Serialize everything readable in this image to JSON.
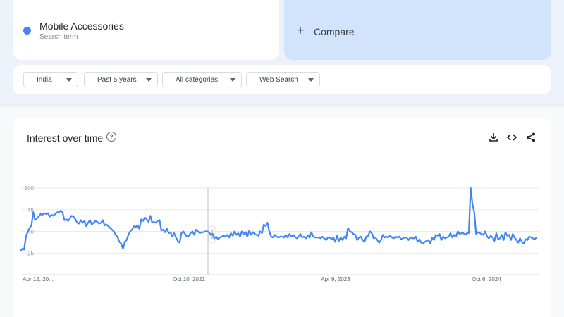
{
  "search_term": {
    "name": "Mobile Accessories",
    "subtitle": "Search term",
    "color": "#4285f4"
  },
  "compare": {
    "label": "Compare"
  },
  "filters": [
    {
      "label": "India"
    },
    {
      "label": "Past 5 years"
    },
    {
      "label": "All categories"
    },
    {
      "label": "Web Search"
    }
  ],
  "chart": {
    "title": "Interest over time",
    "tool_icons": [
      "download-icon",
      "embed-code-icon",
      "share-icon"
    ]
  },
  "chart_data": {
    "type": "line",
    "title": "Interest over time",
    "y_ticks": [
      "25",
      "50",
      "75",
      "100"
    ],
    "ylim": [
      0,
      100
    ],
    "x_tick_labels": [
      "Apr 12, 20...",
      "Oct 10, 2021",
      "Apr 9, 2023",
      "Oct 6, 2024"
    ],
    "grid": true,
    "series": [
      {
        "name": "Mobile Accessories",
        "color": "#4285f4",
        "values": [
          27,
          30,
          29,
          44,
          50,
          54,
          57,
          72,
          63,
          65,
          67,
          70,
          69,
          71,
          70,
          71,
          67,
          69,
          68,
          70,
          72,
          72,
          74,
          72,
          63,
          64,
          62,
          65,
          68,
          67,
          64,
          60,
          59,
          63,
          60,
          62,
          56,
          60,
          63,
          58,
          60,
          62,
          61,
          59,
          60,
          63,
          57,
          58,
          56,
          54,
          52,
          50,
          46,
          44,
          38,
          36,
          30,
          38,
          40,
          46,
          50,
          52,
          56,
          55,
          57,
          53,
          64,
          62,
          66,
          64,
          61,
          68,
          60,
          61,
          60,
          62,
          63,
          51,
          52,
          49,
          53,
          48,
          49,
          44,
          48,
          43,
          39,
          37,
          48,
          50,
          47,
          44,
          45,
          48,
          50,
          46,
          52,
          50,
          48,
          49,
          49,
          50,
          50,
          49,
          46,
          47,
          42,
          44,
          41,
          43,
          44,
          45,
          44,
          46,
          43,
          48,
          45,
          50,
          46,
          48,
          44,
          50,
          47,
          49,
          44,
          51,
          46,
          49,
          47,
          46,
          45,
          50,
          48,
          58,
          56,
          60,
          50,
          44,
          43,
          46,
          44,
          43,
          44,
          44,
          43,
          46,
          43,
          47,
          44,
          46,
          44,
          42,
          44,
          47,
          43,
          44,
          42,
          45,
          43,
          49,
          44,
          43,
          43,
          43,
          42,
          44,
          42,
          40,
          43,
          43,
          41,
          43,
          38,
          45,
          39,
          43,
          40,
          44,
          42,
          54,
          50,
          49,
          47,
          46,
          40,
          43,
          44,
          40,
          38,
          44,
          45,
          50,
          48,
          42,
          43,
          40,
          37,
          40,
          46,
          43,
          44,
          43,
          45,
          43,
          42,
          44,
          43,
          44,
          41,
          42,
          43,
          43,
          40,
          43,
          42,
          42,
          44,
          38,
          41,
          37,
          36,
          38,
          39,
          40,
          36,
          43,
          40,
          46,
          45,
          47,
          40,
          44,
          42,
          43,
          44,
          48,
          43,
          46,
          44,
          50,
          47,
          48,
          48,
          46,
          48,
          48,
          100,
          82,
          72,
          47,
          49,
          48,
          47,
          46,
          50,
          44,
          42,
          45,
          43,
          39,
          48,
          41,
          42,
          46,
          40,
          49,
          45,
          46,
          40,
          47,
          43,
          40,
          37,
          42,
          38,
          36,
          41,
          40,
          44,
          43,
          42,
          41,
          43
        ]
      }
    ]
  }
}
